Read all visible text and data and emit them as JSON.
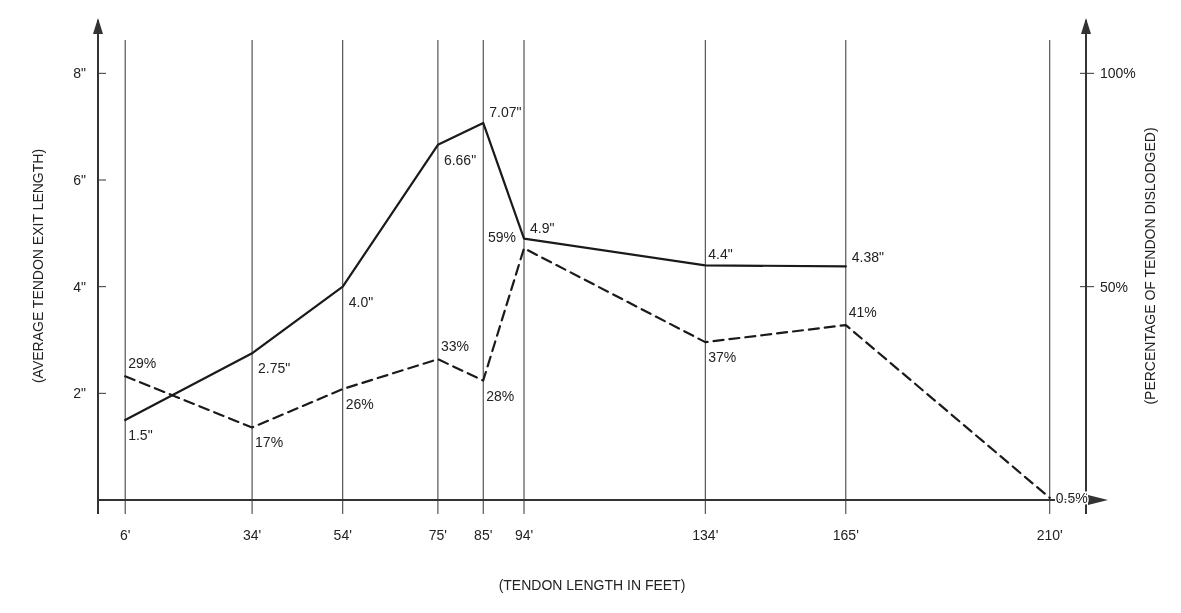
{
  "chart_data": {
    "type": "line",
    "xlabel": "(TENDON LENGTH IN FEET)",
    "ylabel": "(AVERAGE TENDON EXIT LENGTH)",
    "y2label": "(PERCENTAGE OF TENDON DISLODGED)",
    "x": [
      6,
      34,
      54,
      75,
      85,
      94,
      134,
      165,
      210
    ],
    "xlim": [
      0,
      218
    ],
    "xticks": [
      {
        "value": 6,
        "label": "6'"
      },
      {
        "value": 34,
        "label": "34'"
      },
      {
        "value": 54,
        "label": "54'"
      },
      {
        "value": 75,
        "label": "75'"
      },
      {
        "value": 85,
        "label": "85'"
      },
      {
        "value": 94,
        "label": "94'"
      },
      {
        "value": 134,
        "label": "134'"
      },
      {
        "value": 165,
        "label": "165'"
      },
      {
        "value": 210,
        "label": "210'"
      }
    ],
    "ylim": [
      0,
      9
    ],
    "yticks": [
      {
        "value": 2,
        "label": "2\""
      },
      {
        "value": 4,
        "label": "4\""
      },
      {
        "value": 6,
        "label": "6\""
      },
      {
        "value": 8,
        "label": "8\""
      }
    ],
    "y2lim": [
      0,
      112.5
    ],
    "y2ticks": [
      {
        "value": 50,
        "label": "50%"
      },
      {
        "value": 100,
        "label": "100%"
      }
    ],
    "grid": "x",
    "marker": "none",
    "series": [
      {
        "color": "#1a1a1a",
        "line_style": "solid",
        "values": [
          1.5,
          2.75,
          4.0,
          6.66,
          7.07,
          4.9,
          4.4,
          4.38,
          null
        ],
        "value_labels": [
          "1.5\"",
          "2.75\"",
          "4.0\"",
          "6.66\"",
          "7.07\"",
          "4.9\"",
          "4.4\"",
          "4.38\"",
          null
        ]
      },
      {
        "color": "#1a1a1a",
        "line_style": "dashed",
        "axis": "y2",
        "values": [
          29,
          17,
          26,
          33,
          28,
          59,
          37,
          41,
          0.5
        ],
        "value_labels": [
          "29%",
          "17%",
          "26%",
          "33%",
          "28%",
          "59%",
          "37%",
          "41%",
          "0.5%"
        ]
      }
    ]
  }
}
